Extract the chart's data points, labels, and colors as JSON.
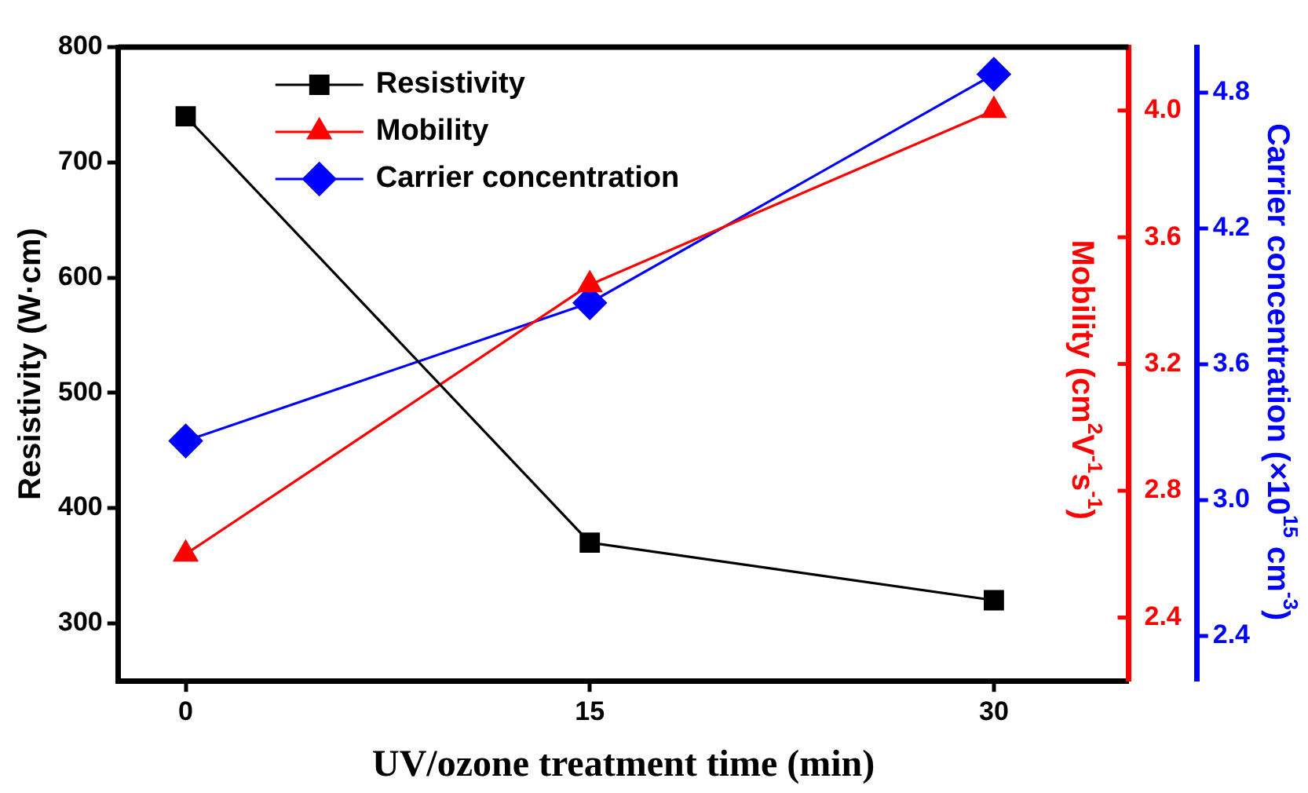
{
  "chart_data": {
    "type": "line",
    "xlabel": "UV/ozone treatment time (min)",
    "ylabel": "Resistivity (W·cm)",
    "y2label": "Mobility (cm$^{2}$V$^{-1}$s$^{-1}$)",
    "y3label": "Carrier concentration (×10$^{15}$ cm$^{-3}$)",
    "x": [
      0,
      15,
      30
    ],
    "xlim": [
      -2.5,
      35
    ],
    "xticks": [
      0,
      15,
      30
    ],
    "ylim": [
      250,
      800
    ],
    "yticks": [
      300,
      400,
      500,
      600,
      700,
      800
    ],
    "y2lim": [
      2.2,
      4.2
    ],
    "y2ticks": [
      2.4,
      2.8,
      3.2,
      3.6,
      {
        "value": 4,
        "label": "4.0"
      }
    ],
    "y3lim": [
      2.2,
      5.0
    ],
    "y3ticks": [
      2.4,
      {
        "value": 3,
        "label": "3.0"
      },
      3.6,
      4.2,
      4.8
    ],
    "legend": "top left",
    "grid": false,
    "line_style": "solid",
    "series": [
      {
        "name": "Resistivity",
        "color": "#000000",
        "marker": "square",
        "values": [
          740,
          370,
          320
        ]
      },
      {
        "name": "Mobility",
        "color": "#ff0000",
        "marker": "triangle",
        "axis": "y2",
        "values": [
          2.6,
          3.45,
          4.0
        ]
      },
      {
        "name": "Carrier concentration",
        "color": "#0000ff",
        "marker": "diamond",
        "axis": "y3",
        "values": [
          3.26,
          3.87,
          4.88
        ]
      }
    ]
  }
}
